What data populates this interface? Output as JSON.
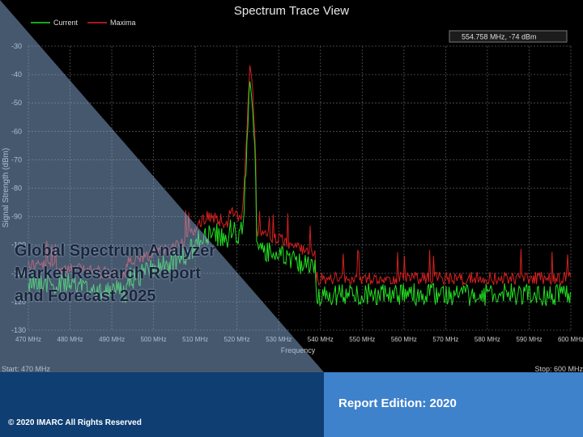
{
  "screenshot": {
    "title": "Spectrum Trace View",
    "legend": [
      "Current",
      "Maxima"
    ],
    "readout": "554.758 MHz,  -74 dBm",
    "yaxis": {
      "label": "Signal Strength (dBm)",
      "ticks": [
        "-30",
        "-40",
        "-50",
        "-60",
        "-70",
        "-80",
        "-90",
        "-100",
        "-110",
        "-120",
        "-130"
      ]
    },
    "xaxis": {
      "label": "Frequency",
      "ticks": [
        "470 MHz",
        "480 MHz",
        "490 MHz",
        "500 MHz",
        "510 MHz",
        "520 MHz",
        "530 MHz",
        "540 MHz",
        "550 MHz",
        "560 MHz",
        "570 MHz",
        "580 MHz",
        "590 MHz",
        "600 MHz"
      ]
    },
    "start": "Start: 470 MHz",
    "stop": "Stop: 600 MHz"
  },
  "cover": {
    "title": "Global Spectrum Analyzer Market Research Report and Forecast 2025",
    "edition": "Report Edition: 2020",
    "copyright": "© 2020 IMARC All Rights Reserved"
  }
}
